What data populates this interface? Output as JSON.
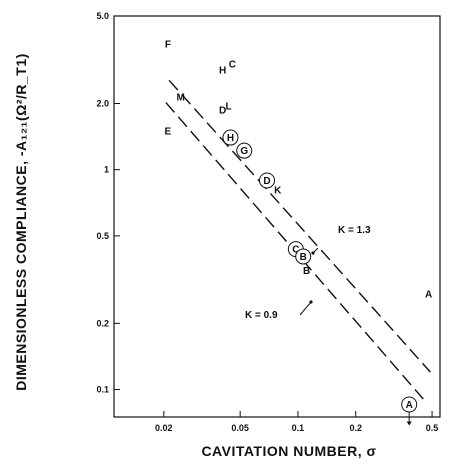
{
  "chart_data": {
    "type": "scatter",
    "x_scale": "log",
    "y_scale": "log",
    "xlim": [
      0.011,
      0.55
    ],
    "ylim": [
      0.075,
      5.0
    ],
    "grid": false,
    "xlabel": "CAVITATION    NUMBER,  σ",
    "ylabel": "DIMENSIONLESS  COMPLIANCE,  -A₁₂₁(Ω²/R_T1)",
    "x_ticks": [
      {
        "value": 0.02,
        "label": "0.02"
      },
      {
        "value": 0.05,
        "label": "0.05"
      },
      {
        "value": 0.1,
        "label": "0.1"
      },
      {
        "value": 0.2,
        "label": "0.2"
      },
      {
        "value": 0.5,
        "label": "0.5"
      }
    ],
    "y_ticks": [
      {
        "value": 0.1,
        "label": "0.1"
      },
      {
        "value": 0.2,
        "label": "0.2"
      },
      {
        "value": 0.5,
        "label": "0.5"
      },
      {
        "value": 1.0,
        "label": "1"
      },
      {
        "value": 2.0,
        "label": "2.0"
      },
      {
        "value": 5.0,
        "label": "5.0"
      }
    ],
    "points": [
      {
        "label": "F",
        "x": 0.021,
        "y": 3.72,
        "circled": false
      },
      {
        "label": "H",
        "x": 0.0405,
        "y": 2.84,
        "circled": false
      },
      {
        "label": "C",
        "x": 0.0455,
        "y": 3.03,
        "circled": false
      },
      {
        "label": "M",
        "x": 0.0245,
        "y": 2.14,
        "circled": false
      },
      {
        "label": "D",
        "x": 0.0405,
        "y": 1.87,
        "circled": false
      },
      {
        "label": "L",
        "x": 0.0435,
        "y": 1.95,
        "circled": false
      },
      {
        "label": "E",
        "x": 0.021,
        "y": 1.5,
        "circled": false
      },
      {
        "label": "H",
        "x": 0.0445,
        "y": 1.4,
        "circled": true
      },
      {
        "label": "G",
        "x": 0.0525,
        "y": 1.22,
        "circled": true
      },
      {
        "label": "D",
        "x": 0.069,
        "y": 0.893,
        "circled": true
      },
      {
        "label": "K",
        "x": 0.0785,
        "y": 0.81,
        "circled": false
      },
      {
        "label": "C",
        "x": 0.0975,
        "y": 0.435,
        "circled": true
      },
      {
        "label": "B",
        "x": 0.1065,
        "y": 0.403,
        "circled": true
      },
      {
        "label": "B",
        "x": 0.111,
        "y": 0.348,
        "circled": false
      },
      {
        "label": "A",
        "x": 0.48,
        "y": 0.272,
        "circled": false
      },
      {
        "label": "A",
        "x": 0.38,
        "y": 0.0855,
        "circled": true
      }
    ],
    "series": [
      {
        "name": "K = 1.3",
        "style": "dashed",
        "x": [
          0.0213,
          0.49
        ],
        "y": [
          2.55,
          0.12
        ]
      },
      {
        "name": "K = 0.9",
        "style": "dashed",
        "x": [
          0.0205,
          0.45
        ],
        "y": [
          2.02,
          0.0905
        ]
      }
    ],
    "annotations": [
      {
        "text": "K = 1.3",
        "series": 0
      },
      {
        "text": "K = 0.9",
        "series": 1
      }
    ],
    "arrow_on_point": "A"
  }
}
